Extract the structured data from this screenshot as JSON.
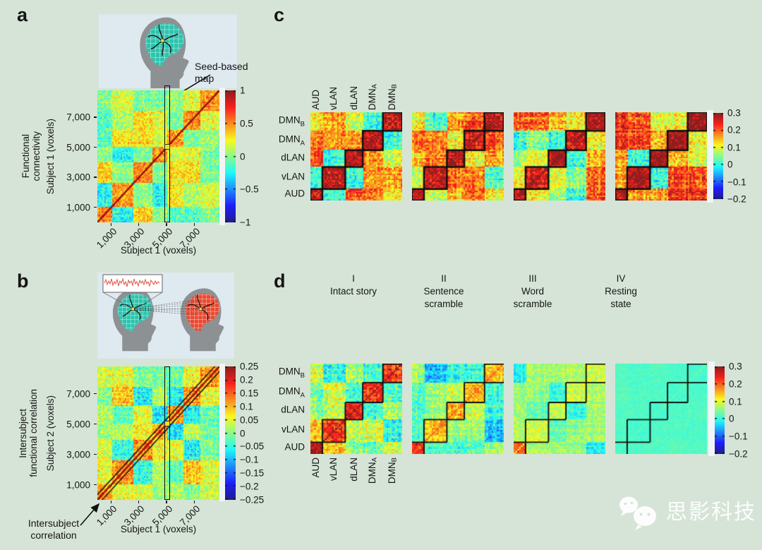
{
  "colors": {
    "background": "#d5e4d6",
    "inset_background": "#dee9f0",
    "head_gray": "#8e9194",
    "brain_teal": "#2ec3ad",
    "brain_red": "#e84a31",
    "seed_yellow": "#f0e12a",
    "annotation_text": "#151515",
    "matrix_outline": "#0d0d0d"
  },
  "watermark": {
    "brand": "思影科技",
    "icon": "wechat-icon"
  },
  "panel_a": {
    "label": "a",
    "caption_lines": [
      "Functional",
      "connectivity"
    ],
    "annotation_lines": [
      "Seed-based",
      "map"
    ],
    "y_axis": {
      "title": "Subject 1 (voxels)",
      "tick_labels": [
        "7,000",
        "5,000",
        "3,000",
        "1,000"
      ]
    },
    "x_axis": {
      "title": "Subject 1 (voxels)",
      "tick_labels": [
        "1,000",
        "3,000",
        "5,000",
        "7,000"
      ]
    },
    "colorbar": {
      "tick_labels": [
        "1",
        "0.5",
        "0",
        "−0.5",
        "−1"
      ]
    }
  },
  "panel_b": {
    "label": "b",
    "caption_lines": [
      "Intersubject",
      "functional correlation"
    ],
    "annotation_lines": [
      "Intersubject",
      "correlation"
    ],
    "y_axis": {
      "title": "Subject 2 (voxels)",
      "tick_labels": [
        "7,000",
        "5,000",
        "3,000",
        "1,000"
      ]
    },
    "x_axis": {
      "title": "Subject 1 (voxels)",
      "tick_labels": [
        "1,000",
        "3,000",
        "5,000",
        "7,000"
      ]
    },
    "colorbar": {
      "tick_labels": [
        "0.25",
        "0.2",
        "0.15",
        "0.1",
        "0.05",
        "0",
        "−0.05",
        "−0.1",
        "−0.15",
        "−0.2",
        "−0.25"
      ]
    }
  },
  "panel_c": {
    "label": "c",
    "networks": [
      {
        "text": "AUD",
        "sub": ""
      },
      {
        "text": "vLAN",
        "sub": ""
      },
      {
        "text": "dLAN",
        "sub": ""
      },
      {
        "text": "DMN",
        "sub": "A"
      },
      {
        "text": "DMN",
        "sub": "B"
      }
    ],
    "colorbar": {
      "tick_labels": [
        "0.3",
        "0.2",
        "0.1",
        "0",
        "−0.1",
        "−0.2"
      ]
    }
  },
  "panel_d": {
    "label": "d",
    "conditions": [
      {
        "numeral": "I",
        "name_lines": [
          "Intact story"
        ]
      },
      {
        "numeral": "II",
        "name_lines": [
          "Sentence",
          "scramble"
        ]
      },
      {
        "numeral": "III",
        "name_lines": [
          "Word",
          "scramble"
        ]
      },
      {
        "numeral": "IV",
        "name_lines": [
          "Resting",
          "state"
        ]
      }
    ],
    "networks": [
      {
        "text": "AUD",
        "sub": ""
      },
      {
        "text": "vLAN",
        "sub": ""
      },
      {
        "text": "dLAN",
        "sub": ""
      },
      {
        "text": "DMN",
        "sub": "A"
      },
      {
        "text": "DMN",
        "sub": "B"
      }
    ],
    "colorbar": {
      "tick_labels": [
        "0.3",
        "0.2",
        "0.1",
        "0",
        "−0.1",
        "−0.2"
      ]
    }
  },
  "chart_data": [
    {
      "id": "a",
      "type": "heatmap",
      "title": "Functional connectivity (within subject 1, voxel × voxel correlation)",
      "x_label": "Subject 1 (voxels)",
      "y_label": "Subject 1 (voxels)",
      "axis_tick_values": [
        1000,
        3000,
        5000,
        7000
      ],
      "axis_max": 8800,
      "value_range": [
        -1,
        1
      ],
      "colorbar_ticks": [
        1,
        0.5,
        0,
        -0.5,
        -1
      ],
      "colormap": "jet",
      "seed_column_frac": 0.5725,
      "diagonal_r": 1,
      "overlays": {
        "seed_column": true,
        "diagonal": "line",
        "seed_marker": true
      },
      "gen": {
        "seed": 11,
        "n": 84,
        "blocks": [
          0,
          0.12,
          0.3,
          0.45,
          0.57,
          0.7,
          0.85,
          1
        ],
        "within_r": 0.5,
        "between_r": 0.13,
        "between_var": 0.27,
        "cool_r": -0.22,
        "cool_prob": 0.22,
        "stripe": 0.12,
        "noise": 0.16,
        "diag_r": 1
      }
    },
    {
      "id": "b",
      "type": "heatmap",
      "title": "Intersubject functional correlation (subject 1 voxels × subject 2 voxels)",
      "x_label": "Subject 1 (voxels)",
      "y_label": "Subject 2 (voxels)",
      "axis_tick_values": [
        1000,
        3000,
        5000,
        7000
      ],
      "axis_max": 8800,
      "value_range": [
        -0.25,
        0.25
      ],
      "colorbar_ticks": [
        0.25,
        0.2,
        0.15,
        0.1,
        0.05,
        0,
        -0.05,
        -0.1,
        -0.15,
        -0.2,
        -0.25
      ],
      "colormap": "jet",
      "seed_column_frac": 0.5725,
      "diagonal_r": 0.25,
      "overlays": {
        "seed_column": true,
        "diagonal": "band",
        "seed_marker": true
      },
      "gen": {
        "seed": 47,
        "n": 84,
        "blocks": [
          0,
          0.12,
          0.3,
          0.45,
          0.57,
          0.7,
          0.85,
          1
        ],
        "within_r": 0.12,
        "between_r": 0.035,
        "between_var": 0.07,
        "cool_r": -0.06,
        "cool_prob": 0.24,
        "stripe": 0.03,
        "noise": 0.042,
        "diag_r": 0.25
      }
    },
    {
      "id": "c",
      "type": "heatmap_row",
      "title": "Functional connectivity grouped by network, four conditions",
      "networks": [
        "AUD",
        "vLAN",
        "dLAN",
        "DMN_A",
        "DMN_B"
      ],
      "block_fractions": [
        0,
        0.13,
        0.38,
        0.57,
        0.79,
        1
      ],
      "value_range": [
        -0.2,
        0.3
      ],
      "colorbar_ticks": [
        0.3,
        0.2,
        0.1,
        0,
        -0.1,
        -0.2
      ],
      "colormap": "jet",
      "block_style": "squares",
      "matrices": [
        {
          "condition": "I Intact story",
          "gen": {
            "seed": 101,
            "within_r": 0.27,
            "between_r": 0.135,
            "between_var": 0.085,
            "cool_r": 0.0,
            "cool_prob": 0.15,
            "stripe": 0.04,
            "noise": 0.05,
            "diag_r": 0.42
          }
        },
        {
          "condition": "II Sentence scramble",
          "gen": {
            "seed": 102,
            "within_r": 0.26,
            "between_r": 0.12,
            "between_var": 0.09,
            "cool_r": 0.0,
            "cool_prob": 0.2,
            "stripe": 0.04,
            "noise": 0.05,
            "diag_r": 0.42
          }
        },
        {
          "condition": "III Word scramble",
          "gen": {
            "seed": 103,
            "within_r": 0.27,
            "between_r": 0.13,
            "between_var": 0.08,
            "cool_r": 0.01,
            "cool_prob": 0.17,
            "stripe": 0.04,
            "noise": 0.05,
            "diag_r": 0.42
          }
        },
        {
          "condition": "IV Resting state",
          "gen": {
            "seed": 104,
            "within_r": 0.28,
            "between_r": 0.14,
            "between_var": 0.09,
            "cool_r": 0.0,
            "cool_prob": 0.15,
            "stripe": 0.04,
            "noise": 0.05,
            "diag_r": 0.42
          }
        }
      ]
    },
    {
      "id": "d",
      "type": "heatmap_row",
      "title": "Intersubject functional correlation grouped by network, four conditions",
      "networks": [
        "AUD",
        "vLAN",
        "dLAN",
        "DMN_A",
        "DMN_B"
      ],
      "condition_labels": [
        "I Intact story",
        "II Sentence scramble",
        "III Word scramble",
        "IV Resting state"
      ],
      "block_fractions": [
        0,
        0.13,
        0.38,
        0.57,
        0.79,
        1
      ],
      "value_range": [
        -0.2,
        0.3
      ],
      "colorbar_ticks": [
        0.3,
        0.2,
        0.1,
        0,
        -0.1,
        -0.2
      ],
      "colormap": "jet",
      "block_style": "steps",
      "matrices": [
        {
          "condition": "I Intact story",
          "gen": {
            "seed": 201,
            "within_r": 0.23,
            "between_r": 0.095,
            "between_var": 0.07,
            "cool_r": 0.01,
            "cool_prob": 0.2,
            "stripe": 0.038,
            "noise": 0.045,
            "boost0": 0.06,
            "diag_r": 0.35
          }
        },
        {
          "condition": "II Sentence scramble",
          "gen": {
            "seed": 202,
            "within_r": 0.15,
            "between_r": 0.04,
            "between_var": 0.05,
            "cool_r": -0.05,
            "cool_prob": 0.27,
            "stripe": 0.032,
            "noise": 0.04,
            "boost0": 0.09,
            "diag_r": 0.2
          }
        },
        {
          "condition": "III Word scramble",
          "gen": {
            "seed": 203,
            "within_r": 0.085,
            "between_r": 0.055,
            "between_var": 0.03,
            "cool_r": 0.0,
            "cool_prob": 0.2,
            "stripe": 0.022,
            "noise": 0.03,
            "boost0": 0.12,
            "diag_r": 0.12
          }
        },
        {
          "condition": "IV Resting state",
          "gen": {
            "seed": 204,
            "within_r": 0.012,
            "between_r": 0.018,
            "between_var": 0.004,
            "cool_r": 0.018,
            "cool_prob": 0.0,
            "stripe": 0.005,
            "noise": 0.01,
            "diag_r": 0.03
          }
        }
      ]
    }
  ]
}
